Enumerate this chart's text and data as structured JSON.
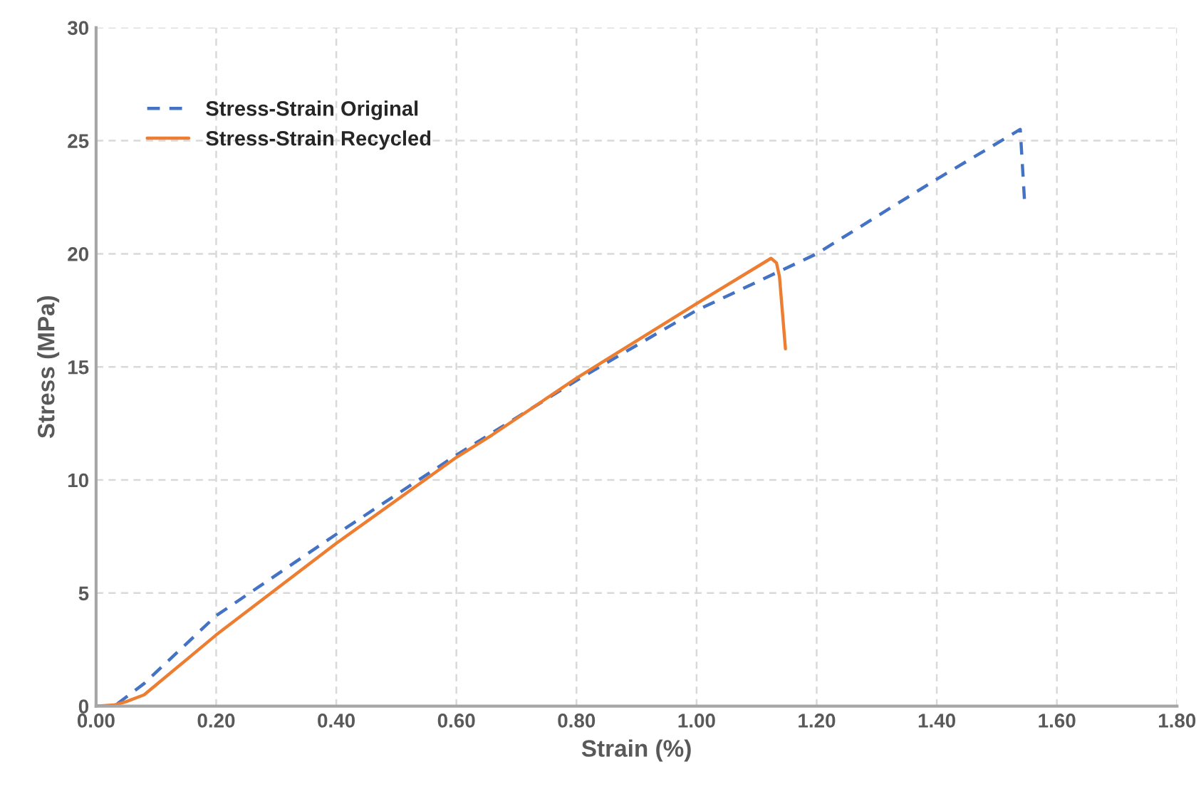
{
  "chart_data": {
    "type": "line",
    "xlabel": "Strain (%)",
    "ylabel": "Stress (MPa)",
    "xlim": [
      0,
      1.8
    ],
    "ylim": [
      0,
      30
    ],
    "xticks": [
      {
        "value": 0,
        "label": "0.00"
      },
      {
        "value": 0.2,
        "label": "0.20"
      },
      {
        "value": 0.4,
        "label": "0.40"
      },
      {
        "value": 0.6,
        "label": "0.60"
      },
      {
        "value": 0.8,
        "label": "0.80"
      },
      {
        "value": 1.0,
        "label": "1.00"
      },
      {
        "value": 1.2,
        "label": "1.20"
      },
      {
        "value": 1.4,
        "label": "1.40"
      },
      {
        "value": 1.6,
        "label": "1.60"
      },
      {
        "value": 1.8,
        "label": "1.80"
      }
    ],
    "yticks": [
      0,
      5,
      10,
      15,
      20,
      25,
      30
    ],
    "grid": true,
    "legend": "top left",
    "series": [
      {
        "name": "Stress-Strain Original",
        "color": "#4472c4",
        "line_style": "dashed",
        "x": [
          0,
          0.03,
          0.08,
          0.2,
          0.4,
          0.6,
          0.8,
          1.0,
          1.2,
          1.4,
          1.539,
          1.546
        ],
        "values": [
          0,
          0,
          1.0,
          4.0,
          7.6,
          11.1,
          14.4,
          17.5,
          20.0,
          23.3,
          25.5,
          22.4
        ]
      },
      {
        "name": "Stress-Strain Recycled",
        "color": "#ed7d31",
        "line_style": "solid",
        "x": [
          0,
          0.03,
          0.05,
          0.08,
          0.2,
          0.4,
          0.6,
          0.66,
          0.8,
          1.0,
          1.124,
          1.133,
          1.138,
          1.148
        ],
        "values": [
          0,
          0.05,
          0.2,
          0.5,
          3.15,
          7.2,
          11.0,
          12.0,
          14.5,
          17.8,
          19.8,
          19.6,
          19.0,
          15.8
        ]
      }
    ]
  }
}
